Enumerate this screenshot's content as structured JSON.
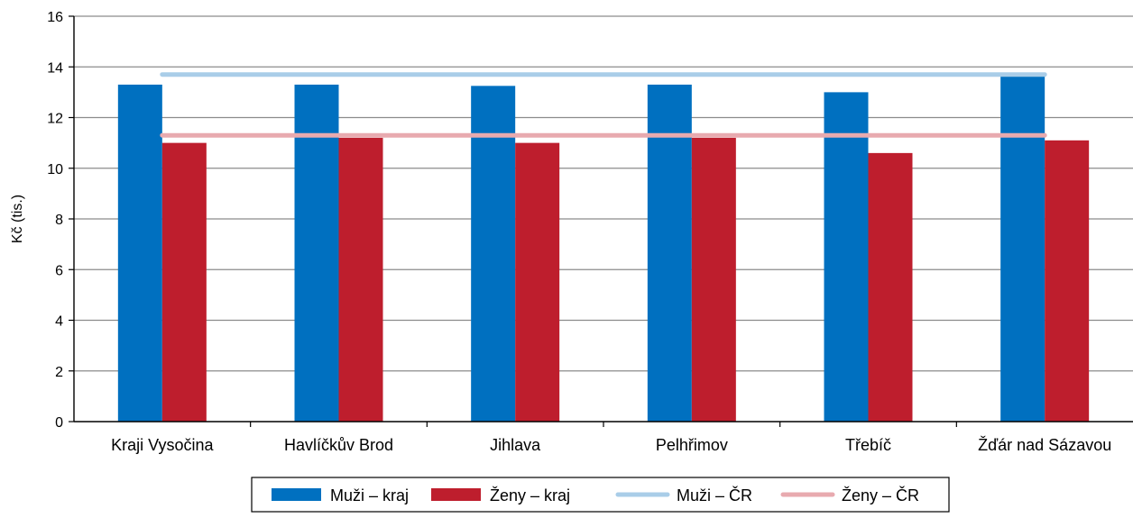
{
  "chart_data": {
    "type": "bar",
    "title": "",
    "xlabel": "",
    "ylabel": "Kč (tis.)",
    "ylim": [
      0,
      16
    ],
    "yticks": [
      0,
      2,
      4,
      6,
      8,
      10,
      12,
      14,
      16
    ],
    "grid": true,
    "legend_position": "bottom",
    "categories": [
      "Kraji Vysočina",
      "Havlíčkův Brod",
      "Jihlava",
      "Pelhřimov",
      "Třebíč",
      "Žďár nad Sázavou"
    ],
    "series": [
      {
        "name": "Muži – kraj",
        "kind": "bar",
        "color": "#0070C0",
        "values": [
          13.3,
          13.3,
          13.25,
          13.3,
          13.0,
          13.65
        ]
      },
      {
        "name": "Ženy – kraj",
        "kind": "bar",
        "color": "#BE1E2D",
        "values": [
          11.0,
          11.2,
          11.0,
          11.2,
          10.6,
          11.1
        ]
      },
      {
        "name": "Muži – ČR",
        "kind": "line",
        "color": "#A9CDE8",
        "value": 13.7
      },
      {
        "name": "Ženy – ČR",
        "kind": "line",
        "color": "#E8AAAF",
        "value": 11.3
      }
    ]
  }
}
